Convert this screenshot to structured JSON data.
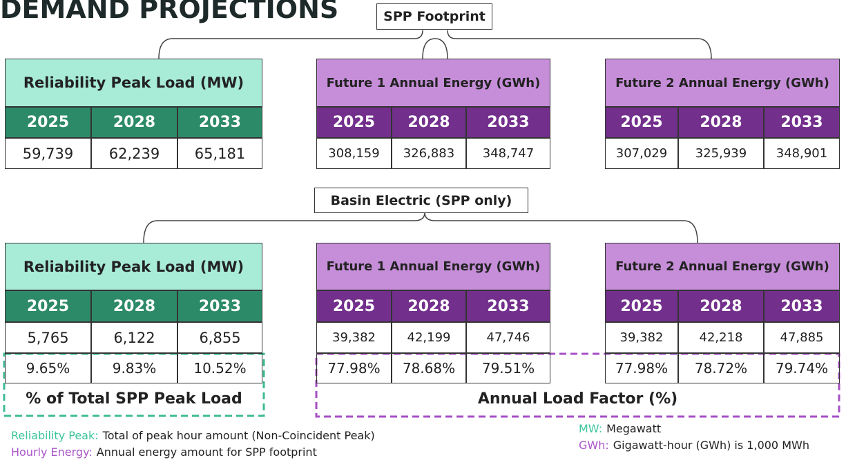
{
  "title": "DEMAND PROJECTIONS",
  "groups": [
    {
      "label": "SPP Footprint",
      "tables": [
        {
          "header": "Reliability Peak Load (MW)",
          "years": [
            "2025",
            "2028",
            "2033"
          ],
          "values": [
            "59,739",
            "62,239",
            "65,181"
          ]
        },
        {
          "header": "Future 1 Annual Energy (GWh)",
          "years": [
            "2025",
            "2028",
            "2033"
          ],
          "values": [
            "308,159",
            "326,883",
            "348,747"
          ]
        },
        {
          "header": "Future 2 Annual Energy (GWh)",
          "years": [
            "2025",
            "2028",
            "2033"
          ],
          "values": [
            "307,029",
            "325,939",
            "348,901"
          ]
        }
      ]
    },
    {
      "label": "Basin Electric (SPP only)",
      "tables": [
        {
          "header": "Reliability Peak Load (MW)",
          "years": [
            "2025",
            "2028",
            "2033"
          ],
          "values": [
            "5,765",
            "6,122",
            "6,855"
          ],
          "shares": [
            "9.65%",
            "9.83%",
            "10.52%"
          ]
        },
        {
          "header": "Future 1 Annual Energy (GWh)",
          "years": [
            "2025",
            "2028",
            "2033"
          ],
          "values": [
            "39,382",
            "42,199",
            "47,746"
          ],
          "shares": [
            "77.98%",
            "78.68%",
            "79.51%"
          ]
        },
        {
          "header": "Future 2 Annual Energy (GWh)",
          "years": [
            "2025",
            "2028",
            "2033"
          ],
          "values": [
            "39,382",
            "42,218",
            "47,885"
          ],
          "shares": [
            "77.98%",
            "78.72%",
            "79.74%"
          ]
        }
      ]
    }
  ],
  "callouts": {
    "peak_share": "% of Total SPP Peak Load",
    "load_factor": "Annual Load Factor (%)"
  },
  "notes_left": [
    {
      "term": "Reliability Peak:",
      "text": "Total of peak hour amount (Non-Coincident Peak)"
    },
    {
      "term": "Hourly Energy:",
      "text": "Annual energy amount for SPP footprint"
    }
  ],
  "notes_right": [
    {
      "term": "MW:",
      "text": "Megawatt"
    },
    {
      "term": "GWh:",
      "text": "Gigawatt-hour (GWh) is 1,000 MWh"
    }
  ]
}
